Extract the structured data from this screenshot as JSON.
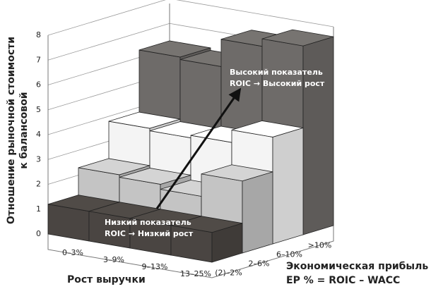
{
  "chart_data": {
    "type": "bar3d",
    "y_label_lines": [
      "Отношение рыночной стоимости",
      "к балансовой"
    ],
    "x_label": "Рост выручки",
    "z_label_lines": [
      "Экономическая прибыль",
      "EP % = ROIC – WACC"
    ],
    "categories": [
      "0–3%",
      "3–9%",
      "9–13%",
      "13–25%"
    ],
    "series": [
      {
        "name": "(2)–2%",
        "color": "#4a4542",
        "values": [
          1.2,
          1.2,
          1.2,
          1.2
        ]
      },
      {
        "name": "2–6%",
        "color": "#c4c4c4",
        "values": [
          2.3,
          2.2,
          2.0,
          2.9
        ]
      },
      {
        "name": "6–10%",
        "color": "#f4f4f4",
        "values": [
          3.8,
          3.7,
          3.8,
          4.3
        ]
      },
      {
        "name": ">10%",
        "color": "#6e6b69",
        "values": [
          6.3,
          6.2,
          7.3,
          7.6
        ]
      }
    ],
    "ylim": [
      0,
      8
    ],
    "yticks": [
      0,
      1,
      2,
      3,
      4,
      5,
      6,
      7,
      8
    ],
    "grid": true,
    "annotations": [
      {
        "lines": [
          "Высокий показатель",
          "ROIC →  Высокий рост"
        ]
      },
      {
        "lines": [
          "Низкий показатель",
          "ROIC → Низкий рост"
        ]
      }
    ]
  }
}
